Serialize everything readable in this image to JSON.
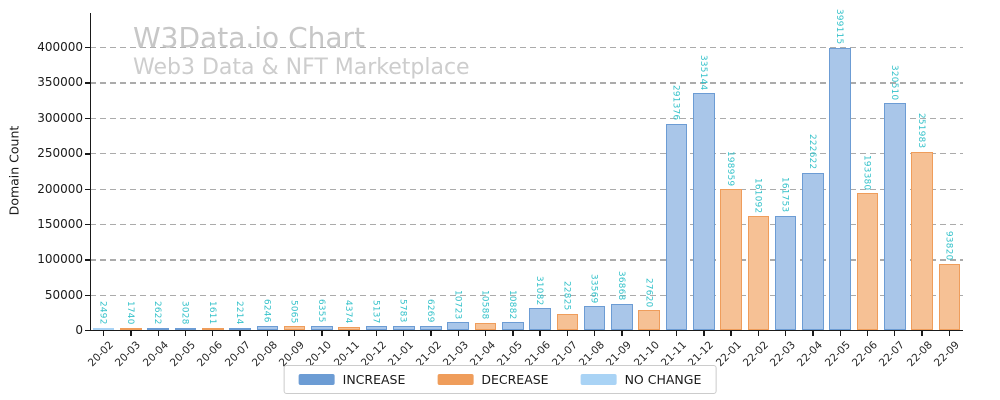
{
  "chart_data": {
    "type": "bar",
    "title": "W3Data.io Chart",
    "subtitle": "Web3 Data & NFT Marketplace",
    "ylabel": "Domain Count",
    "ylim": [
      0,
      400000
    ],
    "ytick_step": 50000,
    "yticks": [
      0,
      50000,
      100000,
      150000,
      200000,
      250000,
      300000,
      350000,
      400000
    ],
    "grid": "dashed-horizontal",
    "legend_position": "bottom-center",
    "categories": [
      "20-02",
      "20-03",
      "20-04",
      "20-05",
      "20-06",
      "20-07",
      "20-08",
      "20-09",
      "20-10",
      "20-11",
      "20-12",
      "21-01",
      "21-02",
      "21-03",
      "21-04",
      "21-05",
      "21-06",
      "21-07",
      "21-08",
      "21-09",
      "21-10",
      "21-11",
      "21-12",
      "22-01",
      "22-02",
      "22-03",
      "22-04",
      "22-05",
      "22-06",
      "22-07",
      "22-08",
      "22-09"
    ],
    "values": [
      2492,
      1740,
      2622,
      3028,
      1611,
      2214,
      6246,
      5065,
      6355,
      4374,
      5137,
      5783,
      6269,
      10723,
      10588,
      10882,
      31082,
      22825,
      33569,
      36868,
      27620,
      291376,
      335144,
      198959,
      161092,
      161753,
      222622,
      399115,
      193380,
      320510,
      251983,
      93820
    ],
    "directions": [
      "no_change",
      "decrease",
      "increase",
      "increase",
      "decrease",
      "increase",
      "increase",
      "decrease",
      "increase",
      "decrease",
      "increase",
      "increase",
      "increase",
      "increase",
      "decrease",
      "increase",
      "increase",
      "decrease",
      "increase",
      "increase",
      "decrease",
      "increase",
      "increase",
      "decrease",
      "decrease",
      "increase",
      "increase",
      "increase",
      "decrease",
      "increase",
      "decrease",
      "decrease"
    ],
    "legend": [
      {
        "label": "INCREASE",
        "key": "increase"
      },
      {
        "label": "DECREASE",
        "key": "decrease"
      },
      {
        "label": "NO CHANGE",
        "key": "no_change"
      }
    ],
    "colors": {
      "increase": "#6c9cd4",
      "increase_fill": "#a9c6e9",
      "decrease": "#ef9d5b",
      "decrease_fill": "#f6c195",
      "no_change": "#a9d3f5",
      "no_change_fill": "#d0e7f9",
      "value_label": "#35c2ca",
      "grid": "#ababab",
      "title_watermark": "#c7c7c7",
      "subtitle_watermark": "#cdcdcd"
    }
  }
}
